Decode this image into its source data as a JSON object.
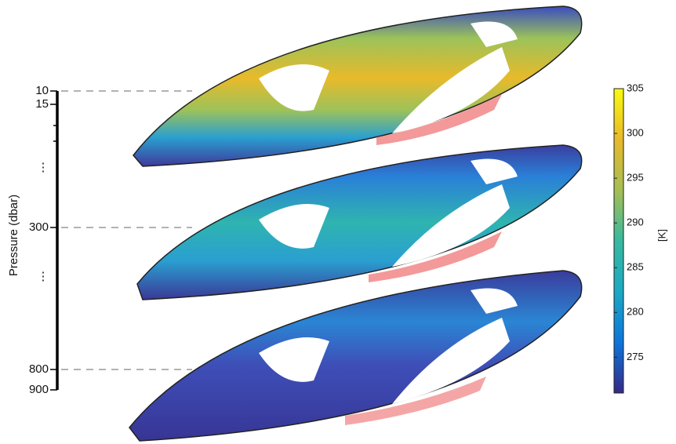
{
  "chart_data": {
    "type": "map-stack",
    "ylabel": "Pressure (dbar)",
    "yticks": [
      10,
      15,
      300,
      800,
      900
    ],
    "levels": [
      10,
      300,
      800
    ],
    "axis_breaks": [
      "⋮",
      "⋮"
    ],
    "colorbar": {
      "label": "[K]",
      "lim": [
        271,
        305
      ],
      "ticks": [
        275,
        280,
        285,
        290,
        295,
        300,
        305
      ],
      "colors": [
        "#352a87",
        "#0d75dc",
        "#1ca9c4",
        "#38b99e",
        "#a6be54",
        "#e7b92c",
        "#f9fb0e"
      ]
    }
  }
}
